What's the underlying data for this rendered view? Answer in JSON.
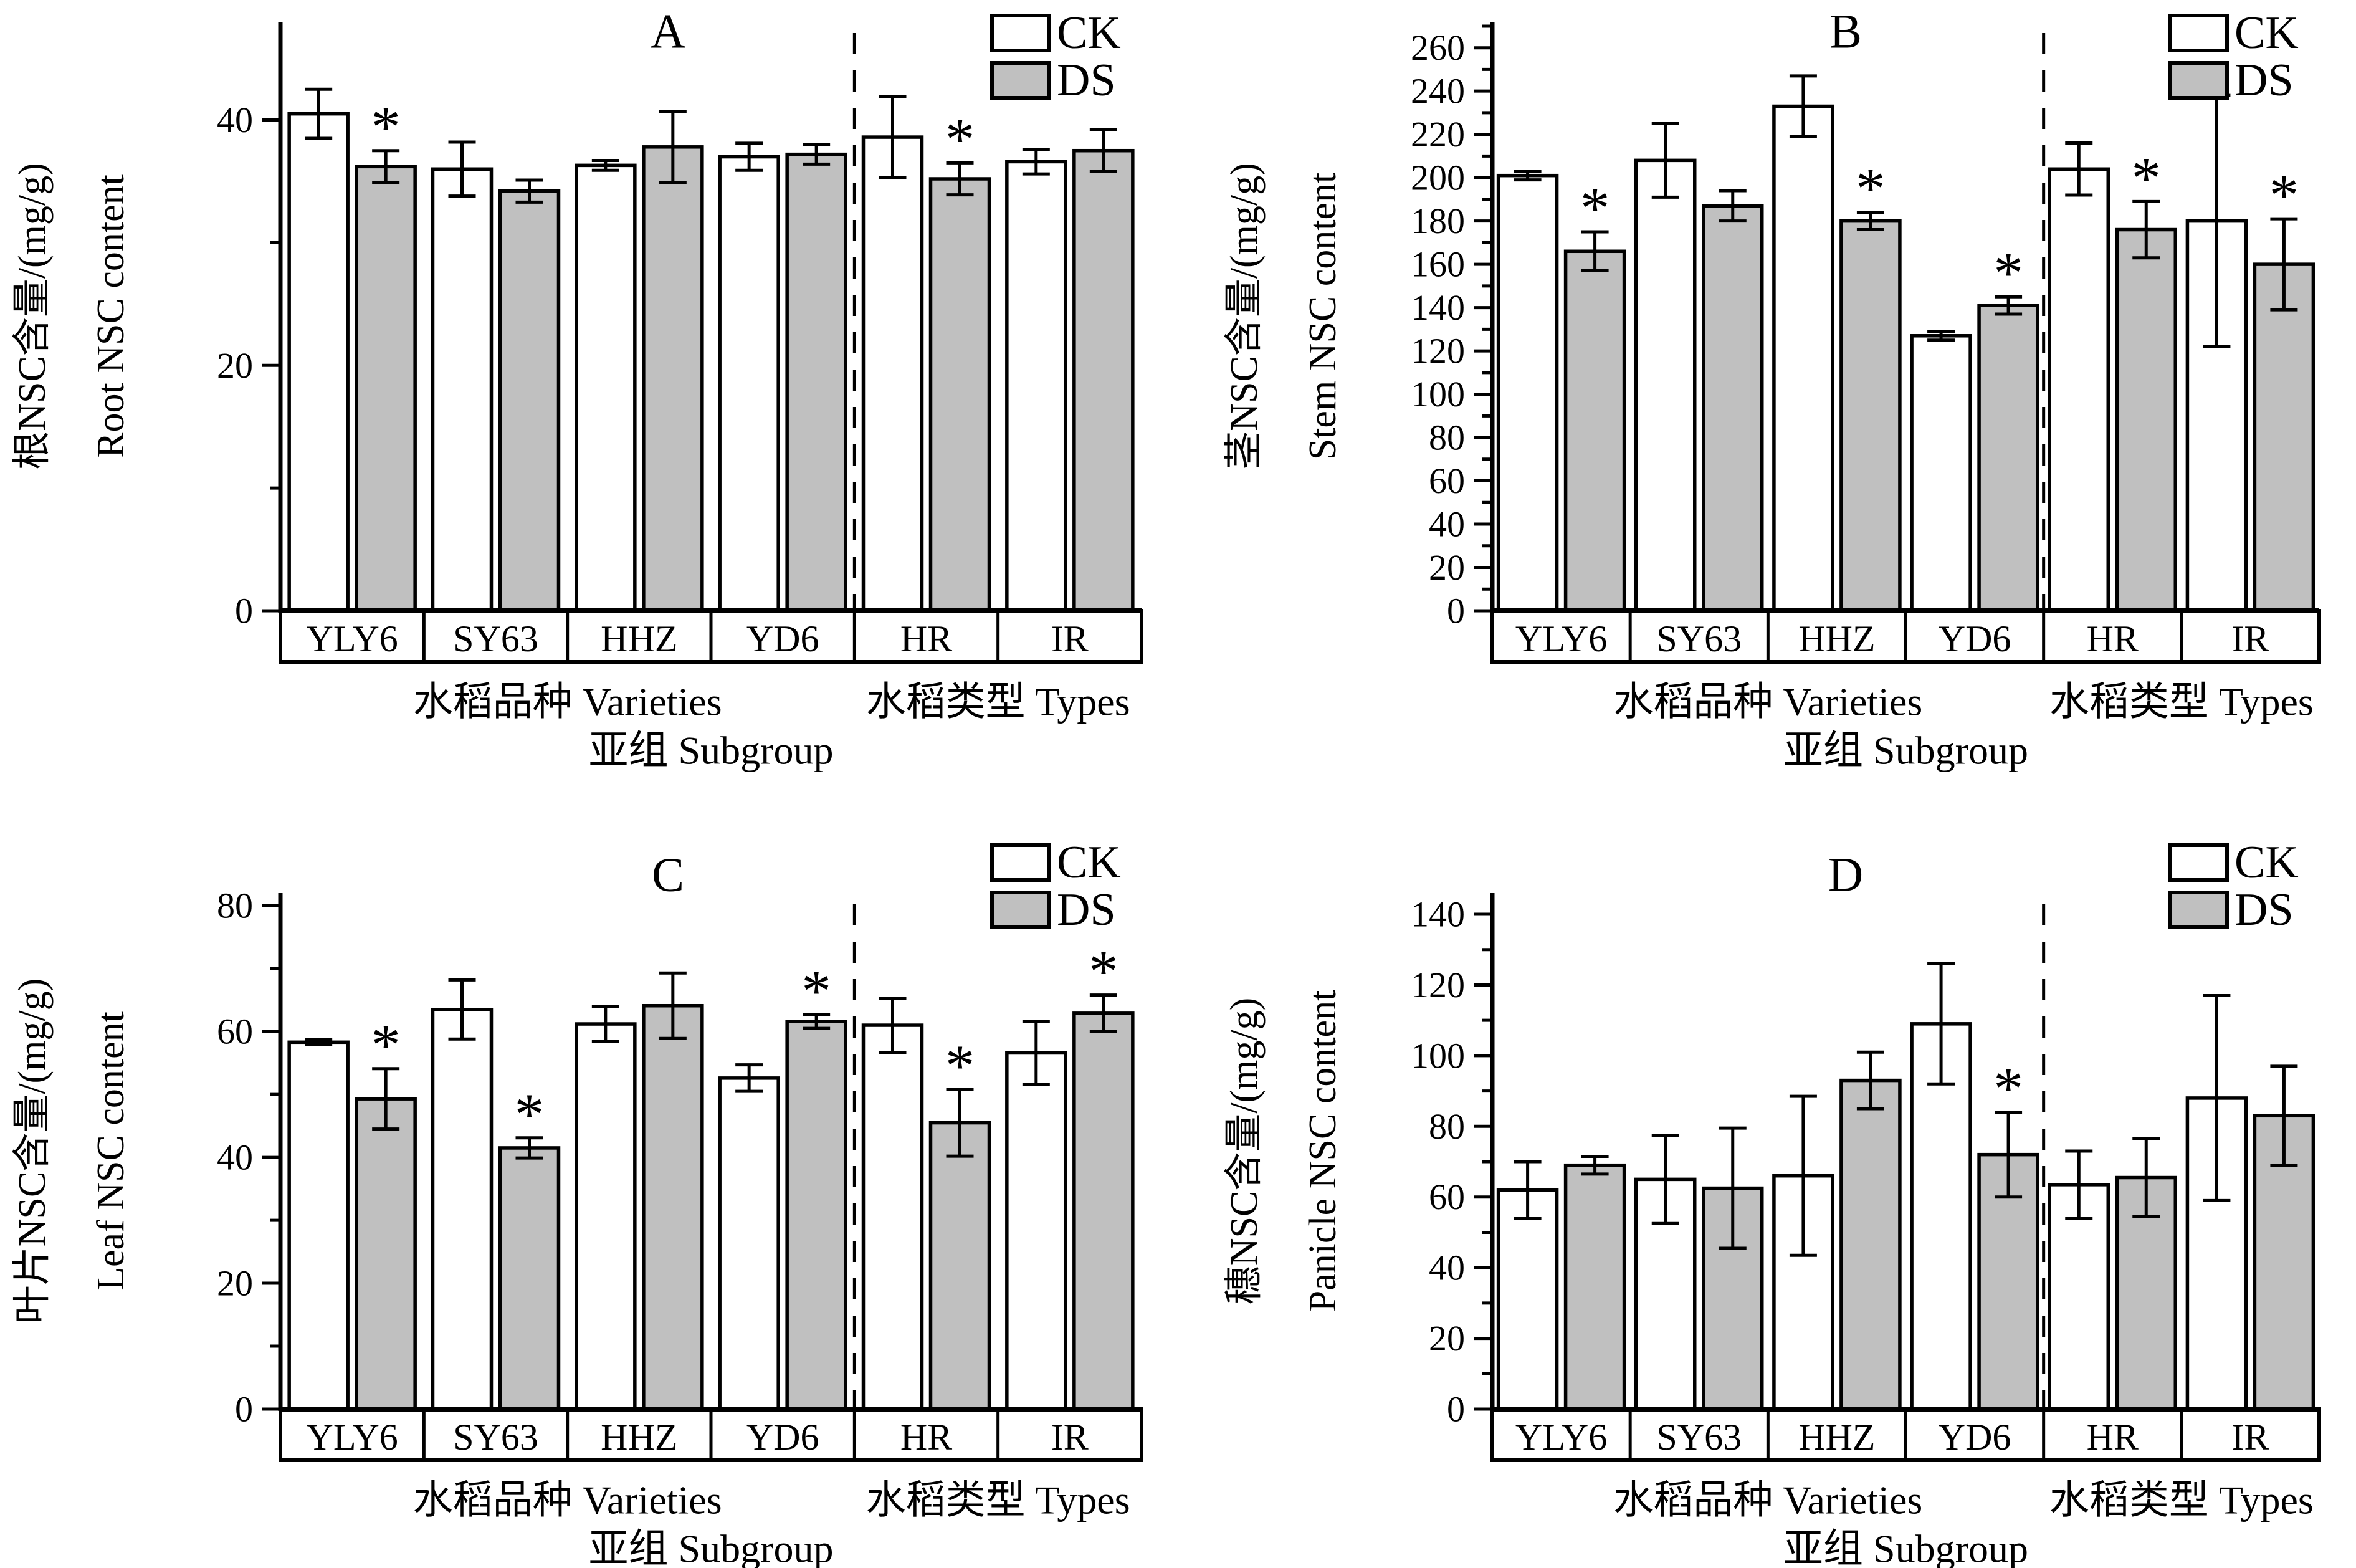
{
  "colors": {
    "background": "#ffffff",
    "stroke": "#000000",
    "ck_fill": "#ffffff",
    "ds_fill": "#c0c0c0"
  },
  "legend": {
    "items": [
      {
        "key": "CK",
        "label": "CK"
      },
      {
        "key": "DS",
        "label": "DS"
      }
    ]
  },
  "significance_marker": "*",
  "x_axis": {
    "categories": [
      "YLY6",
      "SY63",
      "HHZ",
      "YD6",
      "HR",
      "IR"
    ],
    "varieties_label": "水稻品种 Varieties",
    "types_label": "水稻类型  Types",
    "subgroup_label": "亚组  Subgroup",
    "separator_after_index": 3
  },
  "chart_data": [
    {
      "panel": "A",
      "type": "bar",
      "title": "A",
      "ylabel_cn": "根NSC含量/(mg/g)",
      "ylabel_en": "Root NSC content",
      "ymax": 48,
      "ymajor": 20,
      "yminor": 10,
      "yticks": [
        0,
        20,
        40
      ],
      "categories": [
        "YLY6",
        "SY63",
        "HHZ",
        "YD6",
        "HR",
        "IR"
      ],
      "series": [
        {
          "name": "CK",
          "values": [
            40.5,
            36.0,
            36.3,
            37.0,
            38.6,
            36.6
          ],
          "errors": [
            2.0,
            2.2,
            0.4,
            1.1,
            3.3,
            1.0
          ],
          "significant": [
            false,
            false,
            false,
            false,
            false,
            false
          ]
        },
        {
          "name": "DS",
          "values": [
            36.2,
            34.2,
            37.8,
            37.2,
            35.2,
            37.5
          ],
          "errors": [
            1.3,
            0.9,
            2.9,
            0.8,
            1.3,
            1.7
          ],
          "significant": [
            true,
            false,
            false,
            false,
            true,
            false
          ]
        }
      ]
    },
    {
      "panel": "B",
      "type": "bar",
      "title": "B",
      "ylabel_cn": "茎NSC含量/(mg/g)",
      "ylabel_en": "Stem NSC content",
      "ymax": 272,
      "ymajor": 20,
      "yminor": 10,
      "yticks": [
        0,
        20,
        40,
        60,
        80,
        100,
        120,
        140,
        160,
        180,
        200,
        220,
        240,
        260
      ],
      "categories": [
        "YLY6",
        "SY63",
        "HHZ",
        "YD6",
        "HR",
        "IR"
      ],
      "series": [
        {
          "name": "CK",
          "values": [
            201,
            208,
            233,
            127,
            204,
            180
          ],
          "errors": [
            2,
            17,
            14,
            2,
            12,
            58
          ],
          "significant": [
            false,
            false,
            false,
            false,
            false,
            false
          ]
        },
        {
          "name": "DS",
          "values": [
            166,
            187,
            180,
            141,
            176,
            160
          ],
          "errors": [
            9,
            7,
            4,
            4,
            13,
            21
          ],
          "significant": [
            true,
            false,
            true,
            true,
            true,
            true
          ]
        }
      ]
    },
    {
      "panel": "C",
      "type": "bar",
      "title": "C",
      "ylabel_cn": "叶片NSC含量/(mg/g)",
      "ylabel_en": "Leaf NSC content",
      "ymax": 82,
      "ymajor": 20,
      "yminor": 10,
      "yticks": [
        0,
        20,
        40,
        60,
        80
      ],
      "categories": [
        "YLY6",
        "SY63",
        "HHZ",
        "YD6",
        "HR",
        "IR"
      ],
      "series": [
        {
          "name": "CK",
          "values": [
            58.3,
            63.5,
            61.2,
            52.6,
            61.0,
            56.6
          ],
          "errors": [
            0.4,
            4.7,
            2.8,
            2.1,
            4.3,
            5.0
          ],
          "significant": [
            false,
            false,
            false,
            false,
            false,
            false
          ]
        },
        {
          "name": "DS",
          "values": [
            49.3,
            41.5,
            64.1,
            61.6,
            45.5,
            62.9
          ],
          "errors": [
            4.8,
            1.6,
            5.2,
            1.1,
            5.3,
            2.9
          ],
          "significant": [
            true,
            true,
            false,
            true,
            true,
            true
          ]
        }
      ]
    },
    {
      "panel": "D",
      "type": "bar",
      "title": "D",
      "ylabel_cn": "穗NSC含量/(mg/g)",
      "ylabel_en": "Panicle NSC content",
      "ymax": 146,
      "ymajor": 20,
      "yminor": 10,
      "yticks": [
        0,
        20,
        40,
        60,
        80,
        100,
        120,
        140
      ],
      "categories": [
        "YLY6",
        "SY63",
        "HHZ",
        "YD6",
        "HR",
        "IR"
      ],
      "series": [
        {
          "name": "CK",
          "values": [
            62,
            65,
            66,
            109,
            63.5,
            88
          ],
          "errors": [
            8,
            12.5,
            22.5,
            17,
            9.5,
            29
          ],
          "significant": [
            false,
            false,
            false,
            false,
            false,
            false
          ]
        },
        {
          "name": "DS",
          "values": [
            69,
            62.5,
            93,
            72,
            65.5,
            83
          ],
          "errors": [
            2.5,
            17,
            8,
            12,
            11,
            14
          ],
          "significant": [
            false,
            false,
            false,
            true,
            false,
            false
          ]
        }
      ]
    }
  ]
}
